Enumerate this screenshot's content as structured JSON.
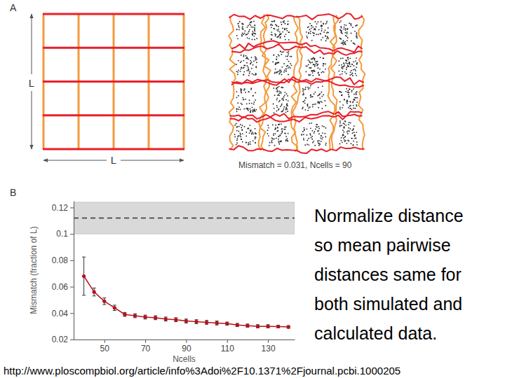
{
  "panel_labels": [
    "A",
    "B"
  ],
  "diagram": {
    "dimension_label": "L",
    "caption": "Mismatch = 0.031, Ncells = 90"
  },
  "chart_data": {
    "type": "line",
    "x_label": "Ncells",
    "y_label": "Mismatch (fraction of L)",
    "x": [
      40,
      45,
      50,
      55,
      60,
      65,
      70,
      75,
      80,
      85,
      90,
      95,
      100,
      105,
      110,
      115,
      120,
      125,
      130,
      135,
      140
    ],
    "series": [
      {
        "color": "#b5121b",
        "marker": "circle",
        "values": [
          0.068,
          0.056,
          0.049,
          0.044,
          0.039,
          0.038,
          0.037,
          0.0365,
          0.0355,
          0.035,
          0.034,
          0.0335,
          0.033,
          0.0325,
          0.032,
          0.031,
          0.0305,
          0.03,
          0.03,
          0.0298,
          0.0295
        ],
        "errors": [
          0.0145,
          0.003,
          0.0025,
          0.002,
          0.0015,
          0.0015,
          0.0015,
          0.0015,
          0.0015,
          0.0015,
          0.0015,
          0.0015,
          0.0015,
          0.0015,
          0.0012,
          0.0012,
          0.0012,
          0.0012,
          0.0012,
          0.001,
          0.001
        ]
      }
    ],
    "reference": {
      "value": 0.112,
      "lower": 0.1,
      "upper": 0.124
    },
    "xlim": [
      35,
      143
    ],
    "ylim": [
      0.02,
      0.125
    ],
    "xticks": [
      50,
      70,
      90,
      110,
      130
    ],
    "yticks": [
      0.02,
      0.04,
      0.06,
      0.08,
      0.1,
      0.12
    ],
    "grid": false
  },
  "note": {
    "lines": [
      "Normalize distance",
      "so mean pairwise",
      "distances same for",
      "both simulated and",
      "calculated data."
    ]
  },
  "source": "http://www.ploscompbiol.org/article/info%3Adoi%2F10.1371%2Fjournal.pcbi.1000205"
}
